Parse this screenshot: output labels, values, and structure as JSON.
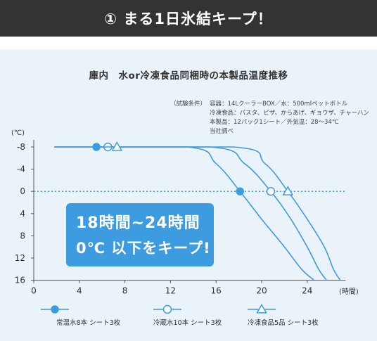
{
  "header": {
    "title": "① まる1日氷結キープ！"
  },
  "chart_data": {
    "type": "line",
    "title": "庫内　水or冷凍食品同梱時の本製品温度推移",
    "xlabel": "(時間)",
    "ylabel": "(℃)",
    "xlim": [
      0,
      27
    ],
    "ylim": [
      -8,
      16
    ],
    "y_inverted": true,
    "x_ticks": [
      0,
      4,
      8,
      12,
      16,
      20,
      24
    ],
    "y_ticks": [
      -8,
      -4,
      0,
      4,
      8,
      12,
      16
    ],
    "y_tick_labels": [
      "-8",
      "-4",
      "0",
      "4",
      "8",
      "12",
      "16"
    ],
    "reference_line": {
      "y": 0,
      "style": "dotted"
    },
    "series": [
      {
        "name": "常温水8本 シート3枚",
        "marker": "filled-circle",
        "x": [
          1.8,
          13.5,
          16.0,
          18.1,
          20.0,
          22.0,
          23.5,
          24.6
        ],
        "y": [
          -8,
          -8,
          -5.0,
          0,
          5.0,
          10.0,
          14.0,
          16.0
        ],
        "marker_points": [
          [
            5.5,
            -8
          ],
          [
            18.1,
            0
          ]
        ]
      },
      {
        "name": "冷蔵水10本 シート3枚",
        "marker": "open-circle",
        "x": [
          1.8,
          15.5,
          18.5,
          20.8,
          22.5,
          24.0,
          25.0,
          25.7
        ],
        "y": [
          -8,
          -8,
          -5.0,
          0,
          4.8,
          10.0,
          14.0,
          16.0
        ],
        "marker_points": [
          [
            6.5,
            -8
          ],
          [
            20.8,
            0
          ]
        ]
      },
      {
        "name": "冷凍食品5品 シート3枚",
        "marker": "open-triangle",
        "x": [
          1.8,
          17.5,
          20.3,
          22.3,
          24.0,
          25.5,
          26.3,
          26.9
        ],
        "y": [
          -8,
          -8,
          -5.0,
          0,
          5.0,
          10.0,
          14.0,
          16.0
        ],
        "marker_points": [
          [
            7.3,
            -8
          ],
          [
            22.3,
            0
          ]
        ]
      }
    ]
  },
  "conditions": {
    "label": "（試験条件）",
    "lines": [
      "容器：14LクーラーBOX／水：500mlペットボトル",
      "冷凍食品：パスタ、ピザ、からあげ、ギョウザ、チャーハン",
      "本製品：12パック1シート／外気温：28〜34℃",
      "当社調べ"
    ]
  },
  "callout": {
    "line1": "18時間~24時間",
    "line2": "0℃ 以下をキープ!"
  },
  "colors": {
    "line": "#3d9be0",
    "header_bg": "#333333",
    "panel_bg": "#eaf3fa",
    "callout_bg": "#3d9be0"
  }
}
